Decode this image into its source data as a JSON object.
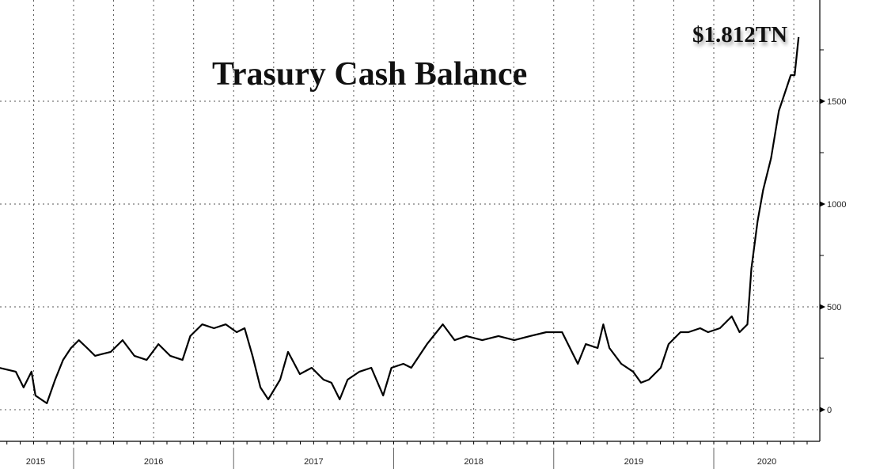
{
  "chart_data": {
    "type": "line",
    "title": "Trasury Cash Balance",
    "annotation": "$1.812TN",
    "xlabel": "",
    "ylabel": "",
    "x_tick_labels": [
      "2015",
      "2016",
      "2017",
      "2018",
      "2019",
      "2020"
    ],
    "y_tick_labels": [
      "0",
      "500",
      "1000",
      "1500"
    ],
    "y_ticks": [
      0,
      500,
      1000,
      1500
    ],
    "ylim": [
      -150,
      2000
    ],
    "xlim": [
      "2015-07-15",
      "2020-07-31"
    ],
    "y_axis_side": "right",
    "grid": true,
    "line_color": "#000000",
    "series": [
      {
        "x": [
          "2015-07-15",
          "2015-08-22",
          "2015-09-09",
          "2015-09-27",
          "2015-10-06",
          "2015-11-01",
          "2015-11-20",
          "2015-12-08",
          "2015-12-26",
          "2016-01-13",
          "2016-02-01",
          "2016-02-19",
          "2016-03-26",
          "2016-04-22",
          "2016-05-19",
          "2016-06-16",
          "2016-07-13",
          "2016-08-09",
          "2016-09-06",
          "2016-09-24",
          "2016-10-21",
          "2016-11-17",
          "2016-12-14",
          "2017-01-08",
          "2017-01-26",
          "2017-02-13",
          "2017-03-03",
          "2017-03-21",
          "2017-04-17",
          "2017-05-05",
          "2017-06-01",
          "2017-06-28",
          "2017-07-25",
          "2017-08-12",
          "2017-08-31",
          "2017-09-18",
          "2017-10-15",
          "2017-11-11",
          "2017-12-08",
          "2017-12-27",
          "2018-01-23",
          "2018-02-10",
          "2018-03-18",
          "2018-04-23",
          "2018-05-20",
          "2018-06-16",
          "2018-07-22",
          "2018-08-28",
          "2018-10-03",
          "2018-11-08",
          "2018-12-15",
          "2019-01-20",
          "2019-02-25",
          "2019-03-15",
          "2019-04-11",
          "2019-04-24",
          "2019-05-08",
          "2019-06-04",
          "2019-07-01",
          "2019-07-19",
          "2019-08-06",
          "2019-09-02",
          "2019-09-20",
          "2019-10-17",
          "2019-11-04",
          "2019-12-01",
          "2019-12-19",
          "2020-01-15",
          "2020-02-11",
          "2020-02-29",
          "2020-03-18",
          "2020-03-27",
          "2020-04-10",
          "2020-04-23",
          "2020-05-11",
          "2020-05-29",
          "2020-06-16",
          "2020-06-25",
          "2020-07-04",
          "2020-07-13"
        ],
        "values": [
          204,
          185,
          108,
          185,
          69,
          31,
          146,
          242,
          300,
          338,
          300,
          262,
          281,
          338,
          262,
          242,
          319,
          262,
          242,
          358,
          415,
          396,
          415,
          377,
          396,
          262,
          108,
          50,
          146,
          281,
          173,
          204,
          146,
          131,
          50,
          146,
          185,
          204,
          69,
          204,
          223,
          204,
          319,
          415,
          338,
          358,
          338,
          358,
          338,
          358,
          377,
          377,
          223,
          319,
          300,
          415,
          300,
          223,
          185,
          131,
          146,
          204,
          319,
          377,
          377,
          396,
          377,
          396,
          454,
          377,
          415,
          685,
          915,
          1069,
          1223,
          1454,
          1569,
          1627,
          1627,
          1812
        ]
      }
    ]
  }
}
